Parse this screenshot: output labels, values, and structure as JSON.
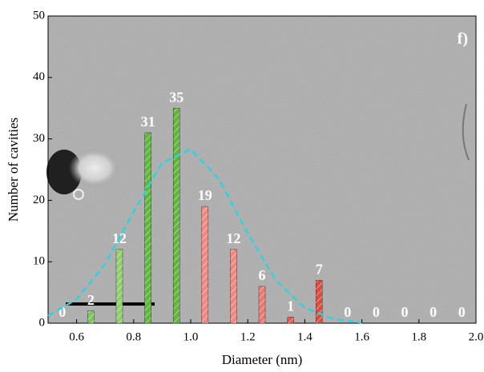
{
  "chart_data": {
    "type": "histogram",
    "panel_label": "f)",
    "x_label": "Diameter (nm)",
    "y_label": "Number of cavities",
    "xlim": [
      0.5,
      2.0
    ],
    "ylim": [
      0,
      50
    ],
    "xticks": [
      0.6,
      0.8,
      {
        "value": 1,
        "label": "1.0"
      },
      1.2,
      1.4,
      1.6,
      1.8,
      {
        "value": 2,
        "label": "2.0"
      }
    ],
    "yticks": [
      0,
      10,
      20,
      30,
      40,
      50
    ],
    "x": [
      0.55,
      0.65,
      0.75,
      0.85,
      0.95,
      1.05,
      1.15,
      1.25,
      1.35,
      1.45,
      1.55,
      1.65,
      1.75,
      1.85,
      1.95
    ],
    "values": [
      0,
      2,
      12,
      31,
      35,
      19,
      12,
      6,
      1,
      7,
      0,
      0,
      0,
      0,
      0
    ],
    "colors": [
      "#7cc85a",
      "#7cc85a",
      "#8fd06a",
      "#5fb83c",
      "#5fb83c",
      "#f08a80",
      "#f08a80",
      "#ec7a70",
      "#e85a50",
      "#e04a40",
      "#e04a40",
      "#e04a40",
      "#e04a40",
      "#e04a40",
      "#e04a40"
    ],
    "fit": {
      "color": "#2ad4e0",
      "x": [
        0.5,
        0.6,
        0.7,
        0.8,
        0.9,
        1.0,
        1.1,
        1.2,
        1.3,
        1.4,
        1.5,
        1.6
      ],
      "values": [
        1.2,
        3.9,
        9.6,
        18.2,
        26.1,
        28.3,
        23.4,
        14.6,
        6.9,
        2.5,
        0.7,
        0.1
      ]
    }
  }
}
